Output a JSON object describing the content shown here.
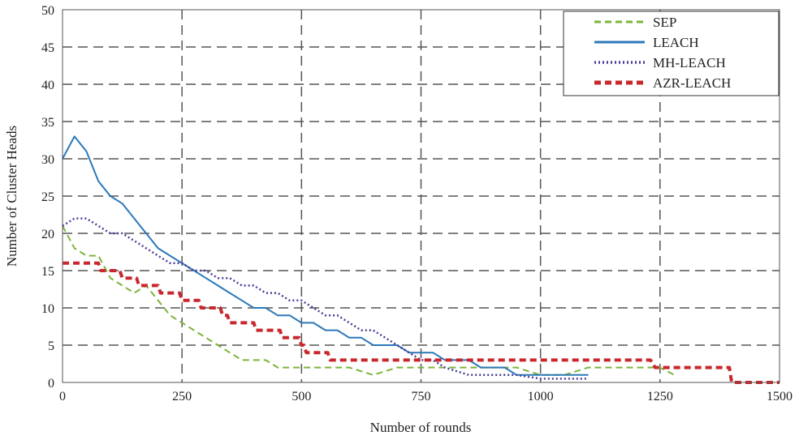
{
  "chart_data": {
    "type": "line",
    "title": "",
    "xlabel": "Number of rounds",
    "ylabel": "Number of Cluster Heads",
    "xlim": [
      0,
      1500
    ],
    "ylim": [
      0,
      50
    ],
    "x_ticks": [
      0,
      250,
      500,
      750,
      1000,
      1250,
      1500
    ],
    "y_ticks": [
      0,
      5,
      10,
      15,
      20,
      25,
      30,
      35,
      40,
      45,
      50
    ],
    "x_tick_labels": [
      "0",
      "250",
      "500",
      "750",
      "1000",
      "1250",
      "1500"
    ],
    "y_tick_labels": [
      "0",
      "5",
      "10",
      "15",
      "20",
      "25",
      "30",
      "35",
      "40",
      "45",
      "50"
    ],
    "grid": true,
    "legend_position": "top-right",
    "series": [
      {
        "name": "SEP",
        "color": "#7db43a",
        "style": "dashed",
        "points": [
          [
            0,
            21
          ],
          [
            25,
            18
          ],
          [
            50,
            17
          ],
          [
            75,
            17
          ],
          [
            100,
            14
          ],
          [
            125,
            13
          ],
          [
            150,
            12
          ],
          [
            175,
            13
          ],
          [
            200,
            11
          ],
          [
            225,
            9
          ],
          [
            250,
            8
          ],
          [
            275,
            7
          ],
          [
            300,
            6
          ],
          [
            325,
            5
          ],
          [
            350,
            4
          ],
          [
            375,
            3
          ],
          [
            400,
            3
          ],
          [
            425,
            3
          ],
          [
            450,
            2
          ],
          [
            475,
            2
          ],
          [
            500,
            2
          ],
          [
            550,
            2
          ],
          [
            600,
            2
          ],
          [
            650,
            1
          ],
          [
            700,
            2
          ],
          [
            750,
            2
          ],
          [
            800,
            2
          ],
          [
            850,
            2
          ],
          [
            900,
            2
          ],
          [
            950,
            2
          ],
          [
            1000,
            1
          ],
          [
            1050,
            1
          ],
          [
            1100,
            2
          ],
          [
            1150,
            2
          ],
          [
            1200,
            2
          ],
          [
            1250,
            2
          ],
          [
            1280,
            1
          ]
        ]
      },
      {
        "name": "LEACH",
        "color": "#2b78b8",
        "style": "solid",
        "points": [
          [
            0,
            30
          ],
          [
            25,
            33
          ],
          [
            50,
            31
          ],
          [
            75,
            27
          ],
          [
            100,
            25
          ],
          [
            125,
            24
          ],
          [
            150,
            22
          ],
          [
            175,
            20
          ],
          [
            200,
            18
          ],
          [
            225,
            17
          ],
          [
            250,
            16
          ],
          [
            275,
            15
          ],
          [
            300,
            14
          ],
          [
            325,
            13
          ],
          [
            350,
            12
          ],
          [
            375,
            11
          ],
          [
            400,
            10
          ],
          [
            425,
            10
          ],
          [
            450,
            9
          ],
          [
            475,
            9
          ],
          [
            500,
            8
          ],
          [
            525,
            8
          ],
          [
            550,
            7
          ],
          [
            575,
            7
          ],
          [
            600,
            6
          ],
          [
            625,
            6
          ],
          [
            650,
            5
          ],
          [
            675,
            5
          ],
          [
            700,
            5
          ],
          [
            725,
            4
          ],
          [
            750,
            4
          ],
          [
            775,
            4
          ],
          [
            800,
            3
          ],
          [
            825,
            3
          ],
          [
            850,
            3
          ],
          [
            875,
            2
          ],
          [
            900,
            2
          ],
          [
            925,
            2
          ],
          [
            950,
            1
          ],
          [
            1000,
            1
          ],
          [
            1050,
            1
          ],
          [
            1100,
            1
          ]
        ]
      },
      {
        "name": "MH-LEACH",
        "color": "#4b3f99",
        "style": "dotted",
        "points": [
          [
            0,
            21
          ],
          [
            25,
            22
          ],
          [
            50,
            22
          ],
          [
            75,
            21
          ],
          [
            100,
            20
          ],
          [
            125,
            20
          ],
          [
            150,
            19
          ],
          [
            175,
            18
          ],
          [
            200,
            17
          ],
          [
            225,
            16
          ],
          [
            250,
            16
          ],
          [
            275,
            15
          ],
          [
            300,
            15
          ],
          [
            325,
            14
          ],
          [
            350,
            14
          ],
          [
            375,
            13
          ],
          [
            400,
            13
          ],
          [
            425,
            12
          ],
          [
            450,
            12
          ],
          [
            475,
            11
          ],
          [
            500,
            11
          ],
          [
            525,
            10
          ],
          [
            550,
            9
          ],
          [
            575,
            9
          ],
          [
            600,
            8
          ],
          [
            625,
            7
          ],
          [
            650,
            7
          ],
          [
            675,
            6
          ],
          [
            700,
            5
          ],
          [
            725,
            4
          ],
          [
            750,
            3
          ],
          [
            775,
            3
          ],
          [
            800,
            2
          ],
          [
            850,
            1
          ],
          [
            900,
            1
          ],
          [
            950,
            1
          ],
          [
            1000,
            0.5
          ],
          [
            1050,
            0.5
          ],
          [
            1100,
            0.5
          ]
        ]
      },
      {
        "name": "AZR-LEACH",
        "color": "#c8282d",
        "style": "dashed",
        "points": [
          [
            0,
            16
          ],
          [
            75,
            16
          ],
          [
            80,
            15
          ],
          [
            120,
            15
          ],
          [
            125,
            14
          ],
          [
            155,
            14
          ],
          [
            160,
            13
          ],
          [
            200,
            13
          ],
          [
            205,
            12
          ],
          [
            245,
            12
          ],
          [
            250,
            11
          ],
          [
            285,
            11
          ],
          [
            290,
            10
          ],
          [
            330,
            10
          ],
          [
            335,
            9
          ],
          [
            345,
            9
          ],
          [
            350,
            8
          ],
          [
            400,
            8
          ],
          [
            405,
            7
          ],
          [
            455,
            7
          ],
          [
            460,
            6
          ],
          [
            495,
            6
          ],
          [
            500,
            5
          ],
          [
            505,
            5
          ],
          [
            510,
            4
          ],
          [
            555,
            4
          ],
          [
            560,
            3
          ],
          [
            1230,
            3
          ],
          [
            1240,
            2
          ],
          [
            1395,
            2
          ],
          [
            1400,
            0
          ],
          [
            1500,
            0
          ]
        ]
      }
    ]
  }
}
